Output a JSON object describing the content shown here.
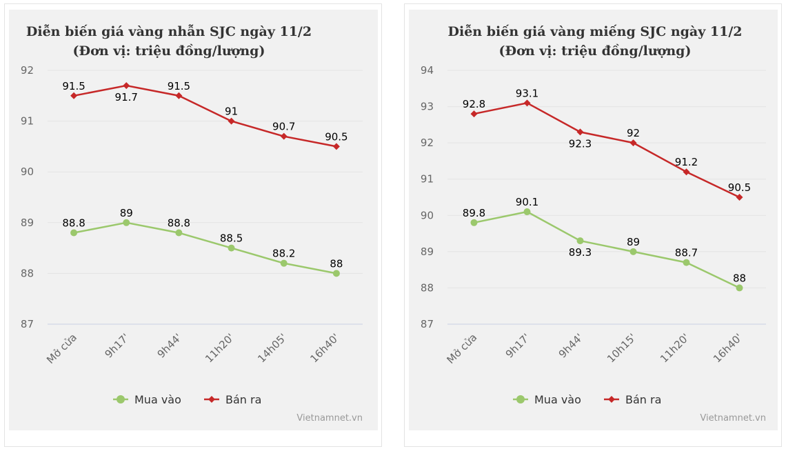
{
  "chart_data": [
    {
      "type": "line",
      "title": "Diễn biến giá vàng nhẫn SJC ngày 11/2",
      "subtitle": "(Đơn vị: triệu đồng/lượng)",
      "categories": [
        "Mở cửa",
        "9h17'",
        "9h44'",
        "11h20'",
        "14h05'",
        "16h40'"
      ],
      "ylim": [
        87,
        92
      ],
      "yticks": [
        87,
        88,
        89,
        90,
        91,
        92
      ],
      "series": [
        {
          "name": "Mua vào",
          "color": "#9bc86c",
          "marker": "circle",
          "values": [
            88.8,
            89,
            88.8,
            88.5,
            88.2,
            88
          ]
        },
        {
          "name": "Bán ra",
          "color": "#c62828",
          "marker": "diamond",
          "values": [
            91.5,
            91.7,
            91.5,
            91,
            90.7,
            90.5
          ]
        }
      ],
      "legend": "bottom-center",
      "credit": "Vietnamnet.vn"
    },
    {
      "type": "line",
      "title": "Diễn biến giá vàng miếng SJC ngày 11/2",
      "subtitle": "(Đơn vị: triệu đồng/lượng)",
      "categories": [
        "Mở cửa",
        "9h17'",
        "9h44'",
        "10h15'",
        "11h20'",
        "16h40'"
      ],
      "ylim": [
        87,
        94
      ],
      "yticks": [
        87,
        88,
        89,
        90,
        91,
        92,
        93,
        94
      ],
      "series": [
        {
          "name": "Mua vào",
          "color": "#9bc86c",
          "marker": "circle",
          "values": [
            89.8,
            90.1,
            89.3,
            89,
            88.7,
            88
          ]
        },
        {
          "name": "Bán ra",
          "color": "#c62828",
          "marker": "diamond",
          "values": [
            92.8,
            93.1,
            92.3,
            92,
            91.2,
            90.5
          ]
        }
      ],
      "legend": "bottom-center",
      "credit": "Vietnamnet.vn"
    }
  ]
}
